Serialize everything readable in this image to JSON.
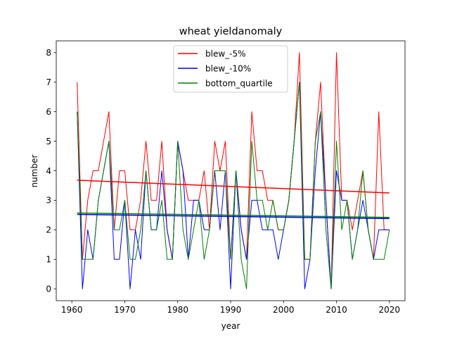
{
  "chart_data": {
    "type": "line",
    "title": "wheat yieldanomaly",
    "xlabel": "year",
    "ylabel": "number",
    "xlim": [
      1957.05,
      2022.95
    ],
    "ylim": [
      -0.4,
      8.4
    ],
    "xticks": [
      1960,
      1970,
      1980,
      1990,
      2000,
      2010,
      2020
    ],
    "yticks": [
      0,
      1,
      2,
      3,
      4,
      5,
      6,
      7,
      8
    ],
    "grid": false,
    "legend_position": "top-center",
    "x": [
      1961,
      1962,
      1963,
      1964,
      1965,
      1966,
      1967,
      1968,
      1969,
      1970,
      1971,
      1972,
      1973,
      1974,
      1975,
      1976,
      1977,
      1978,
      1979,
      1980,
      1981,
      1982,
      1983,
      1984,
      1985,
      1986,
      1987,
      1988,
      1989,
      1990,
      1991,
      1992,
      1993,
      1994,
      1995,
      1996,
      1997,
      1998,
      1999,
      2000,
      2001,
      2002,
      2003,
      2004,
      2005,
      2006,
      2007,
      2008,
      2009,
      2010,
      2011,
      2012,
      2013,
      2014,
      2015,
      2016,
      2017,
      2018,
      2019,
      2020
    ],
    "series": [
      {
        "name": "blew_-5%",
        "color": "#ff0000",
        "values": [
          7,
          1,
          3,
          4,
          4,
          5,
          6,
          2,
          4,
          4,
          2,
          2,
          3,
          5,
          3,
          3,
          5,
          2,
          1,
          5,
          4,
          3,
          3,
          3,
          4,
          2,
          5,
          4,
          5,
          1,
          4,
          2,
          1,
          6,
          4,
          4,
          3,
          3,
          2,
          2,
          3,
          5,
          8,
          1,
          1,
          5,
          7,
          3,
          0,
          8,
          3,
          3,
          2,
          3,
          4,
          2,
          1,
          6,
          2,
          2
        ],
        "trend": [
          3.68,
          3.25
        ]
      },
      {
        "name": "blew_-10%",
        "color": "#0000ff",
        "values": [
          6,
          0,
          2,
          1,
          3,
          4,
          5,
          1,
          1,
          3,
          0,
          2,
          1,
          4,
          2,
          2,
          4,
          2,
          1,
          5,
          4,
          1,
          3,
          3,
          2,
          2,
          4,
          2,
          4,
          0,
          4,
          2,
          1,
          3,
          3,
          2,
          2,
          2,
          1,
          2,
          3,
          5,
          7,
          0,
          1,
          4,
          6,
          3,
          0,
          4,
          3,
          3,
          1,
          2,
          3,
          2,
          1,
          2,
          2,
          2
        ],
        "trend": [
          2.52,
          2.38
        ]
      },
      {
        "name": "bottom_quartile",
        "color": "#008000",
        "values": [
          6,
          1,
          1,
          1,
          3,
          4,
          5,
          2,
          2,
          3,
          1,
          1,
          2,
          4,
          2,
          2,
          3,
          1,
          1,
          5,
          2,
          1,
          2,
          3,
          1,
          2,
          4,
          4,
          4,
          1,
          4,
          1,
          0,
          5,
          3,
          3,
          2,
          3,
          2,
          2,
          3,
          5,
          7,
          1,
          1,
          5,
          6,
          2,
          0,
          5,
          2,
          3,
          1,
          2,
          4,
          2,
          1,
          1,
          1,
          2
        ],
        "trend": [
          2.57,
          2.42
        ]
      }
    ]
  }
}
